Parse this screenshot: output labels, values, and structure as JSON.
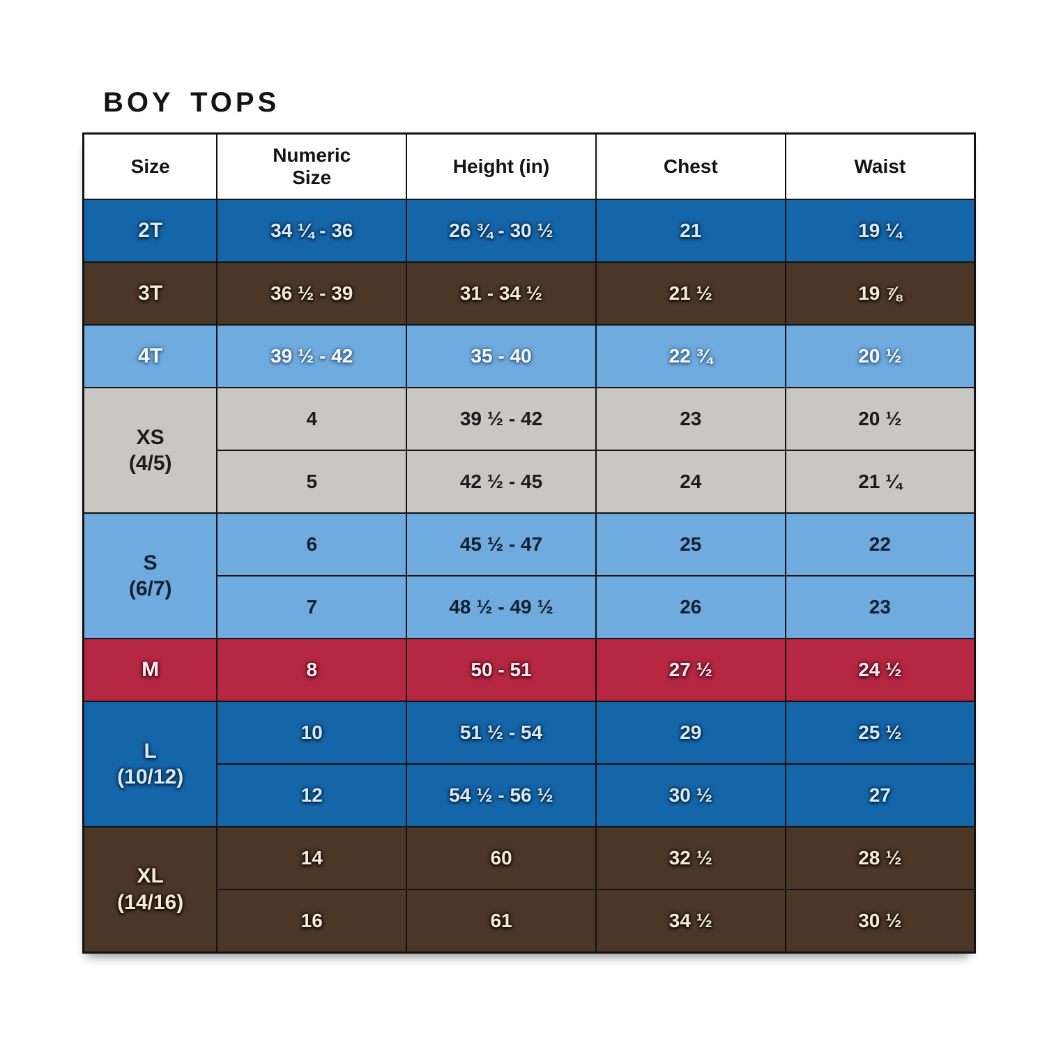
{
  "title": "BOY TOPS",
  "colors": {
    "border": "#121212",
    "themes": {
      "blue": {
        "bg": "#1565a9",
        "fg": "#d9eaf8",
        "shadow": "#062847"
      },
      "brown": {
        "bg": "#4a3728",
        "fg": "#f3ead9",
        "shadow": "#150b04"
      },
      "lightblue_white": {
        "bg": "#6fabde",
        "fg": "#f8fbff",
        "shadow": "#3a648c"
      },
      "gray": {
        "bg": "#c9c7c4",
        "fg": "#1c1c1c",
        "shadow": "rgba(0,0,0,0)"
      },
      "lightblue_dark": {
        "bg": "#6fabde",
        "fg": "#14202e",
        "shadow": "rgba(0,0,0,0)"
      },
      "red": {
        "bg": "#b52742",
        "fg": "#fdf0f0",
        "shadow": "#55081a"
      }
    }
  },
  "table": {
    "headers": [
      "Size",
      "Numeric\nSize",
      "Height (in)",
      "Chest",
      "Waist"
    ],
    "groups": [
      {
        "size_label": "2T",
        "theme": "blue",
        "rows": [
          [
            "34 ¼ - 36",
            "26 ¾ - 30 ½",
            "21",
            "19 ¼"
          ]
        ]
      },
      {
        "size_label": "3T",
        "theme": "brown",
        "rows": [
          [
            "36 ½ - 39",
            "31 - 34 ½",
            "21 ½",
            "19 ⅞"
          ]
        ]
      },
      {
        "size_label": "4T",
        "theme": "lightblue_white",
        "rows": [
          [
            "39 ½ - 42",
            "35 - 40",
            "22 ¾",
            "20 ½"
          ]
        ]
      },
      {
        "size_label": "XS\n(4/5)",
        "theme": "gray",
        "rows": [
          [
            "4",
            "39 ½ - 42",
            "23",
            "20 ½"
          ],
          [
            "5",
            "42 ½ - 45",
            "24",
            "21 ¼"
          ]
        ]
      },
      {
        "size_label": "S\n(6/7)",
        "theme": "lightblue_dark",
        "rows": [
          [
            "6",
            "45 ½ - 47",
            "25",
            "22"
          ],
          [
            "7",
            "48 ½ - 49 ½",
            "26",
            "23"
          ]
        ]
      },
      {
        "size_label": "M",
        "theme": "red",
        "rows": [
          [
            "8",
            "50 - 51",
            "27 ½",
            "24 ½"
          ]
        ]
      },
      {
        "size_label": "L\n(10/12)",
        "theme": "blue",
        "rows": [
          [
            "10",
            "51 ½ - 54",
            "29",
            "25 ½"
          ],
          [
            "12",
            "54 ½ - 56 ½",
            "30 ½",
            "27"
          ]
        ]
      },
      {
        "size_label": "XL\n(14/16)",
        "theme": "brown",
        "rows": [
          [
            "14",
            "60",
            "32 ½",
            "28 ½"
          ],
          [
            "16",
            "61",
            "34 ½",
            "30 ½"
          ]
        ]
      }
    ]
  },
  "chart_data": {
    "type": "table",
    "title": "BOY TOPS",
    "columns": [
      "Size",
      "Numeric Size",
      "Height (in)",
      "Chest",
      "Waist"
    ],
    "rows": [
      [
        "2T",
        "34 ¼ - 36",
        "26 ¾ - 30 ½",
        "21",
        "19 ¼"
      ],
      [
        "3T",
        "36 ½ - 39",
        "31 - 34 ½",
        "21 ½",
        "19 ⅞"
      ],
      [
        "4T",
        "39 ½ - 42",
        "35 - 40",
        "22 ¾",
        "20 ½"
      ],
      [
        "XS (4/5)",
        "4",
        "39 ½ - 42",
        "23",
        "20 ½"
      ],
      [
        "XS (4/5)",
        "5",
        "42 ½ - 45",
        "24",
        "21 ¼"
      ],
      [
        "S (6/7)",
        "6",
        "45 ½ - 47",
        "25",
        "22"
      ],
      [
        "S (6/7)",
        "7",
        "48 ½ - 49 ½",
        "26",
        "23"
      ],
      [
        "M",
        "8",
        "50 - 51",
        "27 ½",
        "24 ½"
      ],
      [
        "L (10/12)",
        "10",
        "51 ½ - 54",
        "29",
        "25 ½"
      ],
      [
        "L (10/12)",
        "12",
        "54 ½ - 56 ½",
        "30 ½",
        "27"
      ],
      [
        "XL (14/16)",
        "14",
        "60",
        "32 ½",
        "28 ½"
      ],
      [
        "XL (14/16)",
        "16",
        "61",
        "34 ½",
        "30 ½"
      ]
    ]
  }
}
